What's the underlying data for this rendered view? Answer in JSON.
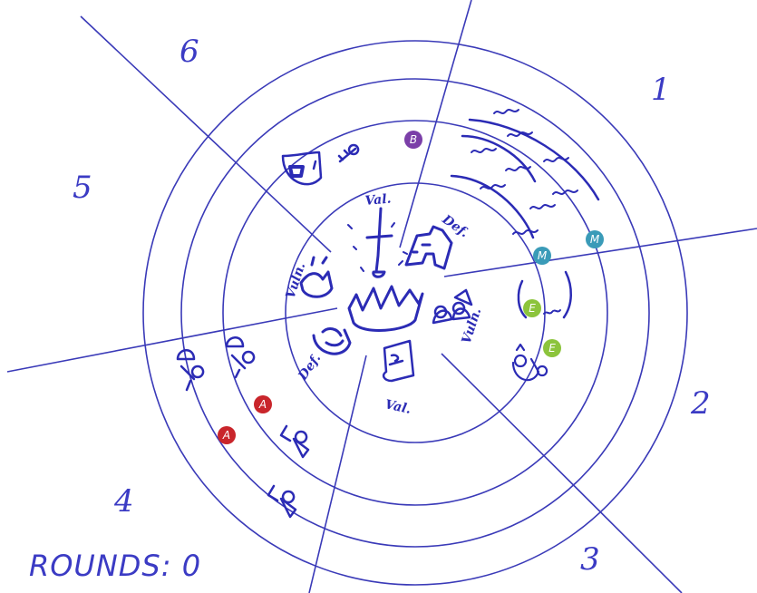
{
  "board": {
    "sectors": [
      "1",
      "2",
      "3",
      "4",
      "5",
      "6"
    ]
  },
  "center_labels": [
    "Val.",
    "Def.",
    "Vuln.",
    "Val.",
    "Def.",
    "Vuln."
  ],
  "markers": [
    {
      "letter": "B",
      "color": "#7b3fa8"
    },
    {
      "letter": "M",
      "color": "#3a9bb8"
    },
    {
      "letter": "M",
      "color": "#3a9bb8"
    },
    {
      "letter": "E",
      "color": "#8cc43c"
    },
    {
      "letter": "E",
      "color": "#8cc43c"
    },
    {
      "letter": "A",
      "color": "#c9252b"
    },
    {
      "letter": "A",
      "color": "#c9252b"
    }
  ],
  "status": {
    "rounds": "ROUNDS: 0"
  }
}
